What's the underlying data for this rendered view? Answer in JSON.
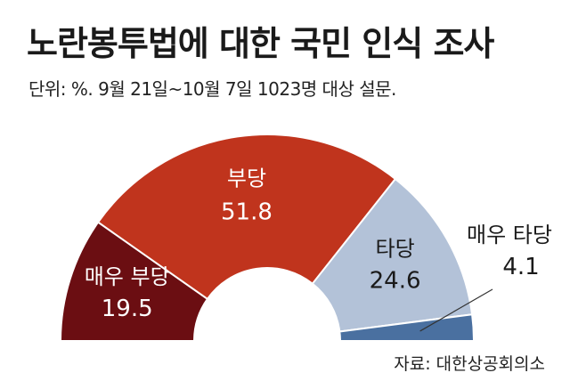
{
  "header": {
    "title": "노란봉투법에 대한 국민 인식 조사",
    "subtitle": "단위: %. 9월 21일~10월 7일 1023명 대상 설문."
  },
  "source": "자료: 대한상공회의소",
  "chart_data": {
    "type": "pie",
    "variant": "half-donut",
    "title": "노란봉투법에 대한 국민 인식 조사",
    "unit": "%",
    "slices": [
      {
        "label": "매우 부당",
        "value": 19.5,
        "color": "#6b0e12"
      },
      {
        "label": "부당",
        "value": 51.8,
        "color": "#c0341d"
      },
      {
        "label": "타당",
        "value": 24.6,
        "color": "#b3c2d8"
      },
      {
        "label": "매우 타당",
        "value": 4.1,
        "color": "#4a70a0"
      }
    ]
  }
}
